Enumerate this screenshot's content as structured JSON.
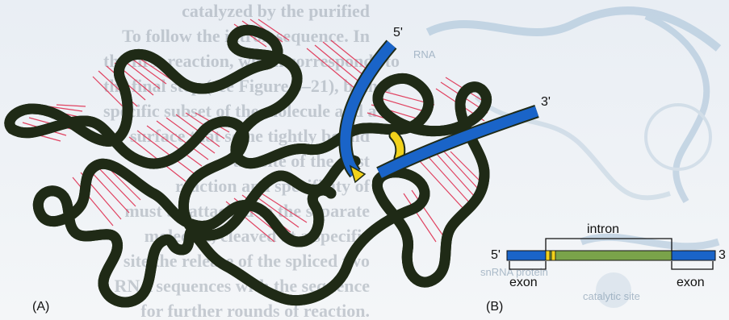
{
  "background_text": [
    "catalyzed by the purified",
    "To follow the intron sequence. In",
    "the first reaction, which corresponds to",
    "the final step (see Figure 6–21), both a",
    "specific subset of the molecule and a",
    "surface that some tightly bound",
    "the site of the first",
    "reaction and specificity of",
    "must be attached to the separate",
    "molecule, cleaved at a specific",
    "site the release of the spliced two",
    "RNA sequences with the sequence",
    "for further rounds of reaction."
  ],
  "background_labels": {
    "rna": "RNA",
    "snrna_protein": "snRNA protein",
    "catalytic_site": "catalytic site"
  },
  "panel_a": {
    "label": "(A)",
    "five_prime": "5'",
    "three_prime": "3'"
  },
  "panel_b": {
    "label": "(B)",
    "intron": "intron",
    "five_prime": "5'",
    "three_prime": "3",
    "exon_left": "exon",
    "exon_right": "exon"
  },
  "colors": {
    "intron_green": "#7aa34a",
    "intron_outline": "#1f2a16",
    "exon_blue": "#1a64c8",
    "splice_yellow": "#f2d21b",
    "base_pairs_red": "#e03a5a"
  }
}
